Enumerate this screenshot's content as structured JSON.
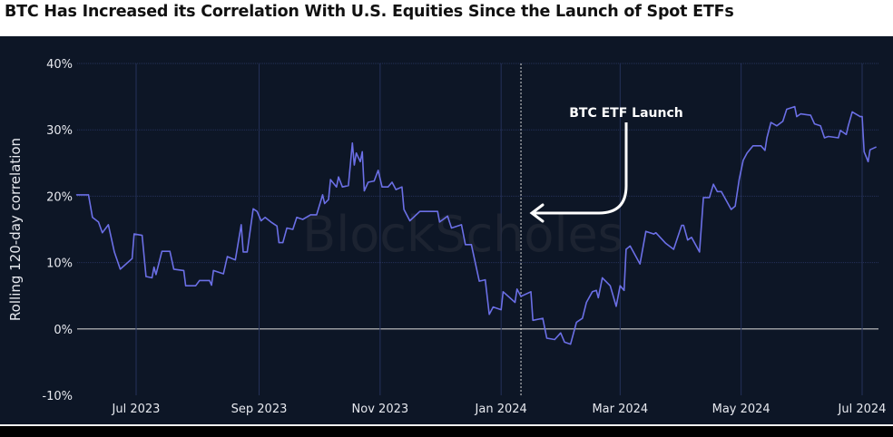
{
  "title": "BTC Has Increased its Correlation With U.S. Equities Since the Launch of Spot ETFs",
  "watermark": "BlockScholes",
  "colors": {
    "line": "#6b6fe6",
    "background": "#0d1626",
    "grid": "#25315a",
    "zero_line": "#c8c8c8",
    "annotation": "#ffffff"
  },
  "chart_data": {
    "type": "line",
    "title": "BTC Has Increased its Correlation With U.S. Equities Since the Launch of Spot ETFs",
    "xlabel": "",
    "ylabel": "Rolling 120-day correlation",
    "ylim": [
      -10,
      40
    ],
    "yunit": "%",
    "grid": true,
    "yticks": [
      {
        "v": 40,
        "label": "40%"
      },
      {
        "v": 30,
        "label": "30%"
      },
      {
        "v": 20,
        "label": "20%"
      },
      {
        "v": 10,
        "label": "10%"
      },
      {
        "v": 0,
        "label": "0%"
      },
      {
        "v": -10,
        "label": "-10%"
      }
    ],
    "xticks": [
      {
        "d": "2023-07-01",
        "label": "Jul 2023"
      },
      {
        "d": "2023-09-01",
        "label": "Sep 2023"
      },
      {
        "d": "2023-11-01",
        "label": "Nov 2023"
      },
      {
        "d": "2024-01-01",
        "label": "Jan 2024"
      },
      {
        "d": "2024-03-01",
        "label": "Mar 2024"
      },
      {
        "d": "2024-05-01",
        "label": "May 2024"
      },
      {
        "d": "2024-07-01",
        "label": "Jul 2024"
      }
    ],
    "annotation": {
      "text": "BTC ETF Launch",
      "date": "2024-01-11"
    },
    "series": [
      {
        "points": [
          [
            "2023-06-01",
            20.2
          ],
          [
            "2023-06-07",
            20.2
          ],
          [
            "2023-06-09",
            16.8
          ],
          [
            "2023-06-12",
            16.1
          ],
          [
            "2023-06-14",
            14.5
          ],
          [
            "2023-06-17",
            15.7
          ],
          [
            "2023-06-20",
            11.6
          ],
          [
            "2023-06-23",
            9.0
          ],
          [
            "2023-06-29",
            10.6
          ],
          [
            "2023-06-30",
            14.3
          ],
          [
            "2023-07-04",
            14.1
          ],
          [
            "2023-07-06",
            7.9
          ],
          [
            "2023-07-09",
            7.7
          ],
          [
            "2023-07-10",
            9.3
          ],
          [
            "2023-07-11",
            8.2
          ],
          [
            "2023-07-14",
            11.7
          ],
          [
            "2023-07-18",
            11.7
          ],
          [
            "2023-07-20",
            9.0
          ],
          [
            "2023-07-25",
            8.8
          ],
          [
            "2023-07-26",
            6.5
          ],
          [
            "2023-07-31",
            6.5
          ],
          [
            "2023-08-02",
            7.3
          ],
          [
            "2023-08-07",
            7.3
          ],
          [
            "2023-08-08",
            6.6
          ],
          [
            "2023-08-09",
            8.8
          ],
          [
            "2023-08-14",
            8.3
          ],
          [
            "2023-08-16",
            10.9
          ],
          [
            "2023-08-20",
            10.4
          ],
          [
            "2023-08-23",
            15.7
          ],
          [
            "2023-08-24",
            11.6
          ],
          [
            "2023-08-26",
            11.6
          ],
          [
            "2023-08-29",
            18.1
          ],
          [
            "2023-08-31",
            17.7
          ],
          [
            "2023-09-02",
            16.3
          ],
          [
            "2023-09-04",
            16.8
          ],
          [
            "2023-09-07",
            16.1
          ],
          [
            "2023-09-10",
            15.5
          ],
          [
            "2023-09-11",
            13.0
          ],
          [
            "2023-09-13",
            13.0
          ],
          [
            "2023-09-15",
            15.2
          ],
          [
            "2023-09-18",
            15.0
          ],
          [
            "2023-09-20",
            16.8
          ],
          [
            "2023-09-23",
            16.5
          ],
          [
            "2023-09-27",
            17.2
          ],
          [
            "2023-09-30",
            17.2
          ],
          [
            "2023-10-03",
            20.2
          ],
          [
            "2023-10-04",
            18.9
          ],
          [
            "2023-10-06",
            19.5
          ],
          [
            "2023-10-07",
            22.5
          ],
          [
            "2023-10-10",
            21.4
          ],
          [
            "2023-10-11",
            22.9
          ],
          [
            "2023-10-13",
            21.4
          ],
          [
            "2023-10-16",
            21.6
          ],
          [
            "2023-10-18",
            28.0
          ],
          [
            "2023-10-19",
            24.7
          ],
          [
            "2023-10-20",
            26.5
          ],
          [
            "2023-10-22",
            25.2
          ],
          [
            "2023-10-23",
            26.7
          ],
          [
            "2023-10-24",
            20.8
          ],
          [
            "2023-10-26",
            22.1
          ],
          [
            "2023-10-29",
            22.3
          ],
          [
            "2023-10-31",
            23.9
          ],
          [
            "2023-11-02",
            21.4
          ],
          [
            "2023-11-05",
            21.4
          ],
          [
            "2023-11-07",
            22.1
          ],
          [
            "2023-11-09",
            21.0
          ],
          [
            "2023-11-12",
            21.4
          ],
          [
            "2023-11-13",
            18.0
          ],
          [
            "2023-11-16",
            16.3
          ],
          [
            "2023-11-21",
            17.7
          ],
          [
            "2023-11-30",
            17.7
          ],
          [
            "2023-12-01",
            16.1
          ],
          [
            "2023-12-05",
            17.0
          ],
          [
            "2023-12-07",
            15.2
          ],
          [
            "2023-12-12",
            15.7
          ],
          [
            "2023-12-14",
            12.7
          ],
          [
            "2023-12-17",
            12.7
          ],
          [
            "2023-12-21",
            7.2
          ],
          [
            "2023-12-24",
            7.4
          ],
          [
            "2023-12-26",
            2.2
          ],
          [
            "2023-12-28",
            3.3
          ],
          [
            "2024-01-01",
            2.9
          ],
          [
            "2024-01-02",
            5.6
          ],
          [
            "2024-01-08",
            4.0
          ],
          [
            "2024-01-09",
            6.0
          ],
          [
            "2024-01-11",
            4.9
          ],
          [
            "2024-01-16",
            5.6
          ],
          [
            "2024-01-17",
            1.3
          ],
          [
            "2024-01-22",
            1.6
          ],
          [
            "2024-01-24",
            -1.4
          ],
          [
            "2024-01-28",
            -1.6
          ],
          [
            "2024-01-31",
            -0.6
          ],
          [
            "2024-02-02",
            -2.0
          ],
          [
            "2024-02-05",
            -2.3
          ],
          [
            "2024-02-08",
            1.0
          ],
          [
            "2024-02-11",
            1.6
          ],
          [
            "2024-02-13",
            4.0
          ],
          [
            "2024-02-16",
            5.6
          ],
          [
            "2024-02-18",
            5.8
          ],
          [
            "2024-02-19",
            4.7
          ],
          [
            "2024-02-21",
            7.7
          ],
          [
            "2024-02-25",
            6.5
          ],
          [
            "2024-02-28",
            3.4
          ],
          [
            "2024-03-01",
            6.5
          ],
          [
            "2024-03-03",
            5.8
          ],
          [
            "2024-03-04",
            12.0
          ],
          [
            "2024-03-06",
            12.5
          ],
          [
            "2024-03-11",
            9.8
          ],
          [
            "2024-03-14",
            14.7
          ],
          [
            "2024-03-18",
            14.3
          ],
          [
            "2024-03-19",
            14.5
          ],
          [
            "2024-03-24",
            12.9
          ],
          [
            "2024-03-28",
            12.0
          ],
          [
            "2024-04-01",
            15.6
          ],
          [
            "2024-04-02",
            15.6
          ],
          [
            "2024-04-04",
            13.4
          ],
          [
            "2024-04-06",
            13.8
          ],
          [
            "2024-04-10",
            11.6
          ],
          [
            "2024-04-12",
            19.8
          ],
          [
            "2024-04-15",
            19.8
          ],
          [
            "2024-04-17",
            21.8
          ],
          [
            "2024-04-19",
            20.7
          ],
          [
            "2024-04-21",
            20.7
          ],
          [
            "2024-04-26",
            18.0
          ],
          [
            "2024-04-28",
            18.5
          ],
          [
            "2024-04-30",
            22.5
          ],
          [
            "2024-05-02",
            25.4
          ],
          [
            "2024-05-04",
            26.5
          ],
          [
            "2024-05-07",
            27.6
          ],
          [
            "2024-05-11",
            27.6
          ],
          [
            "2024-05-13",
            26.9
          ],
          [
            "2024-05-14",
            28.8
          ],
          [
            "2024-05-16",
            31.1
          ],
          [
            "2024-05-19",
            30.6
          ],
          [
            "2024-05-22",
            31.3
          ],
          [
            "2024-05-24",
            33.1
          ],
          [
            "2024-05-28",
            33.5
          ],
          [
            "2024-05-29",
            32.0
          ],
          [
            "2024-05-31",
            32.4
          ],
          [
            "2024-06-05",
            32.2
          ],
          [
            "2024-06-07",
            30.9
          ],
          [
            "2024-06-10",
            30.6
          ],
          [
            "2024-06-12",
            28.8
          ],
          [
            "2024-06-14",
            29.0
          ],
          [
            "2024-06-19",
            28.8
          ],
          [
            "2024-06-20",
            29.9
          ],
          [
            "2024-06-23",
            29.3
          ],
          [
            "2024-06-24",
            30.6
          ],
          [
            "2024-06-26",
            32.7
          ],
          [
            "2024-06-30",
            32.0
          ],
          [
            "2024-07-01",
            32.0
          ],
          [
            "2024-07-02",
            26.7
          ],
          [
            "2024-07-04",
            25.2
          ],
          [
            "2024-07-05",
            27.0
          ],
          [
            "2024-07-08",
            27.4
          ]
        ]
      }
    ]
  }
}
